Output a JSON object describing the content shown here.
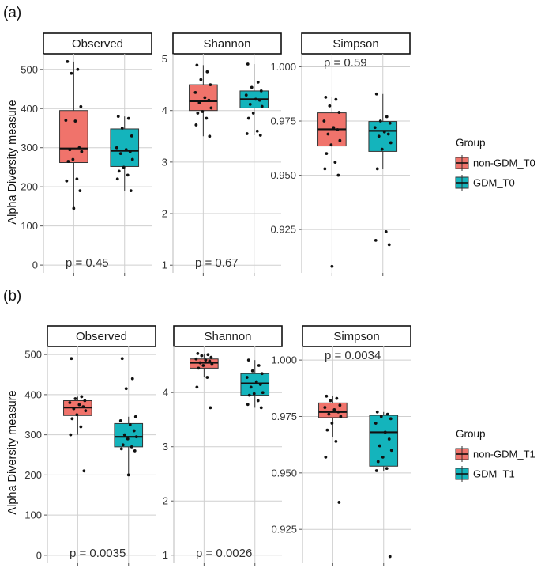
{
  "figure": {
    "y_axis_title": "Alpha Diversity measure",
    "legend_title": "Group",
    "colors": {
      "non_gdm": "#F0736B",
      "gdm": "#14B4BC",
      "grid": "#CFCFCF",
      "dot": "#111111",
      "median": "#111111"
    }
  },
  "chart_data": [
    {
      "panel_label": "(a)",
      "type": "boxplot",
      "legend": [
        "non-GDM_T0",
        "GDM_T0"
      ],
      "facets": [
        {
          "title": "Observed",
          "ylim": [
            -20,
            540
          ],
          "yticks": [
            0,
            100,
            200,
            300,
            400,
            500
          ],
          "ytick_labels": [
            "0",
            "100",
            "200",
            "300",
            "400",
            "500"
          ],
          "p_value": "p = 0.45",
          "p_position": "bottom",
          "groups": [
            {
              "name": "non-GDM_T0",
              "q1": 262,
              "median": 298,
              "q3": 395,
              "whisker_low": 145,
              "whisker_high": 520,
              "points": [
                520,
                500,
                490,
                405,
                370,
                368,
                300,
                295,
                290,
                270,
                265,
                220,
                215,
                190,
                145
              ]
            },
            {
              "name": "GDM_T0",
              "q1": 252,
              "median": 292,
              "q3": 348,
              "whisker_low": 190,
              "whisker_high": 380,
              "points": [
                380,
                375,
                350,
                330,
                300,
                295,
                290,
                285,
                270,
                250,
                240,
                230,
                220,
                190
              ]
            }
          ]
        },
        {
          "title": "Shannon",
          "ylim": [
            0.85,
            5.1
          ],
          "yticks": [
            1,
            2,
            3,
            4,
            5
          ],
          "ytick_labels": [
            "1",
            "2",
            "3",
            "4",
            "5"
          ],
          "p_value": "p = 0.67",
          "p_position": "bottom",
          "groups": [
            {
              "name": "non-GDM_T0",
              "q1": 4.0,
              "median": 4.18,
              "q3": 4.5,
              "whisker_low": 3.5,
              "whisker_high": 4.88,
              "points": [
                4.88,
                4.75,
                4.6,
                4.5,
                4.35,
                4.25,
                4.2,
                4.15,
                4.05,
                3.98,
                3.95,
                3.85,
                3.72,
                3.5
              ]
            },
            {
              "name": "GDM_T0",
              "q1": 4.05,
              "median": 4.22,
              "q3": 4.38,
              "whisker_low": 3.52,
              "whisker_high": 4.9,
              "points": [
                4.9,
                4.55,
                4.45,
                4.38,
                4.3,
                4.22,
                4.2,
                4.12,
                4.08,
                3.95,
                3.85,
                3.6,
                3.55,
                3.52
              ]
            }
          ]
        },
        {
          "title": "Simpson",
          "ylim": [
            0.905,
            1.006
          ],
          "yticks": [
            0.925,
            0.95,
            0.975,
            1.0
          ],
          "ytick_labels": [
            "0.925",
            "0.950",
            "0.975",
            "1.000"
          ],
          "p_value": "p = 0.59",
          "p_position": "top",
          "groups": [
            {
              "name": "non-GDM_T0",
              "q1": 0.9635,
              "median": 0.9712,
              "q3": 0.9788,
              "whisker_low": 0.95,
              "whisker_high": 0.986,
              "points": [
                0.986,
                0.985,
                0.982,
                0.979,
                0.975,
                0.972,
                0.971,
                0.969,
                0.966,
                0.964,
                0.96,
                0.956,
                0.953,
                0.95,
                0.908
              ]
            },
            {
              "name": "GDM_T0",
              "q1": 0.961,
              "median": 0.9705,
              "q3": 0.9748,
              "whisker_low": 0.953,
              "whisker_high": 0.9875,
              "points": [
                0.9875,
                0.977,
                0.975,
                0.974,
                0.972,
                0.97,
                0.969,
                0.968,
                0.965,
                0.962,
                0.953,
                0.924,
                0.92,
                0.918
              ]
            }
          ]
        }
      ]
    },
    {
      "panel_label": "(b)",
      "type": "boxplot",
      "legend": [
        "non-GDM_T1",
        "GDM_T1"
      ],
      "facets": [
        {
          "title": "Observed",
          "ylim": [
            -20,
            520
          ],
          "yticks": [
            0,
            100,
            200,
            300,
            400,
            500
          ],
          "ytick_labels": [
            "0",
            "100",
            "200",
            "300",
            "400",
            "500"
          ],
          "p_value": "p = 0.0035",
          "p_position": "bottom",
          "groups": [
            {
              "name": "non-GDM_T1",
              "q1": 348,
              "median": 368,
              "q3": 385,
              "whisker_low": 300,
              "whisker_high": 395,
              "points": [
                490,
                395,
                390,
                385,
                380,
                375,
                370,
                365,
                360,
                350,
                340,
                320,
                300,
                210
              ]
            },
            {
              "name": "GDM_T1",
              "q1": 270,
              "median": 295,
              "q3": 328,
              "whisker_low": 200,
              "whisker_high": 345,
              "points": [
                490,
                440,
                415,
                345,
                335,
                325,
                310,
                300,
                295,
                290,
                275,
                270,
                265,
                260,
                200
              ]
            }
          ]
        },
        {
          "title": "Shannon",
          "ylim": [
            0.85,
            4.85
          ],
          "yticks": [
            1,
            2,
            3,
            4
          ],
          "ytick_labels": [
            "1",
            "2",
            "3",
            "4"
          ],
          "p_value": "p = 0.0026",
          "p_position": "bottom",
          "groups": [
            {
              "name": "non-GDM_T1",
              "q1": 4.45,
              "median": 4.55,
              "q3": 4.62,
              "whisker_low": 4.28,
              "whisker_high": 4.72,
              "points": [
                4.72,
                4.7,
                4.68,
                4.65,
                4.62,
                4.6,
                4.58,
                4.55,
                4.52,
                4.5,
                4.45,
                4.28,
                4.1,
                3.72
              ]
            },
            {
              "name": "GDM_T1",
              "q1": 3.95,
              "median": 4.17,
              "q3": 4.35,
              "whisker_low": 3.72,
              "whisker_high": 4.6,
              "points": [
                4.6,
                4.5,
                4.4,
                4.35,
                4.28,
                4.2,
                4.15,
                4.1,
                4.0,
                3.98,
                3.95,
                3.85,
                3.78,
                3.72
              ]
            }
          ]
        },
        {
          "title": "Simpson",
          "ylim": [
            0.91,
            1.006
          ],
          "yticks": [
            0.925,
            0.95,
            0.975,
            1.0
          ],
          "ytick_labels": [
            "0.925",
            "0.950",
            "0.975",
            "1.000"
          ],
          "p_value": "p = 0.0034",
          "p_position": "top",
          "groups": [
            {
              "name": "non-GDM_T1",
              "q1": 0.9745,
              "median": 0.977,
              "q3": 0.981,
              "whisker_low": 0.966,
              "whisker_high": 0.984,
              "points": [
                0.984,
                0.983,
                0.982,
                0.98,
                0.979,
                0.978,
                0.977,
                0.976,
                0.975,
                0.972,
                0.969,
                0.964,
                0.957,
                0.937
              ]
            },
            {
              "name": "GDM_T1",
              "q1": 0.953,
              "median": 0.968,
              "q3": 0.9755,
              "whisker_low": 0.951,
              "whisker_high": 0.977,
              "points": [
                0.977,
                0.976,
                0.975,
                0.974,
                0.972,
                0.968,
                0.965,
                0.962,
                0.96,
                0.957,
                0.955,
                0.952,
                0.951,
                0.913
              ]
            }
          ]
        }
      ]
    }
  ]
}
